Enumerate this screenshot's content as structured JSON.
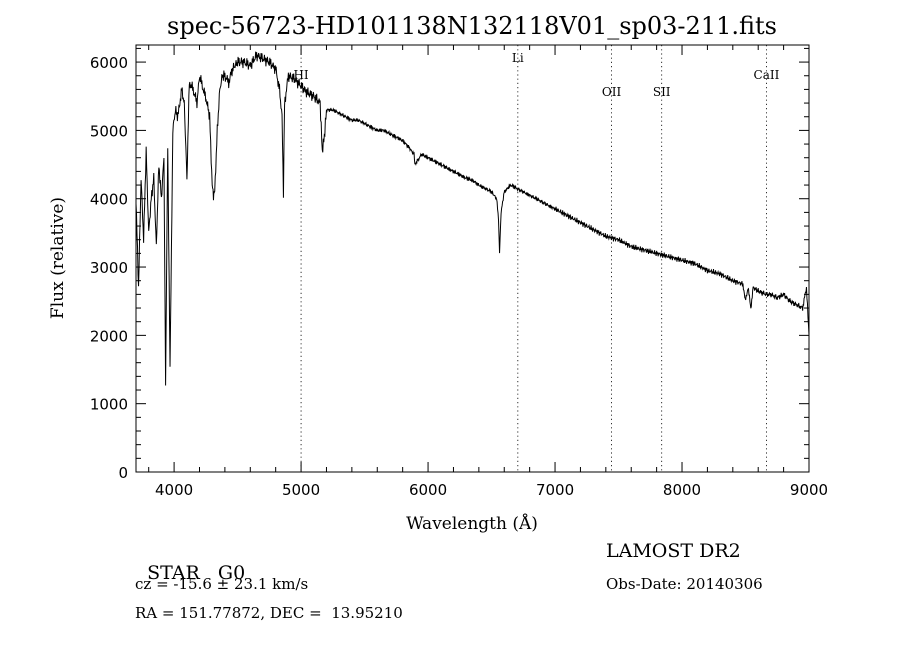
{
  "chart_data": {
    "type": "line",
    "title": "spec-56723-HD101138N132118V01_sp03-211.fits",
    "xlabel": "Wavelength (Å)",
    "ylabel": "Flux (relative)",
    "xlim": [
      3700,
      9000
    ],
    "ylim": [
      0,
      6250
    ],
    "x_ticks": [
      4000,
      5000,
      6000,
      7000,
      8000,
      9000
    ],
    "y_ticks": [
      0,
      1000,
      2000,
      3000,
      4000,
      5000,
      6000
    ],
    "grid": false,
    "series": [
      {
        "x": [
          3700,
          3720,
          3740,
          3760,
          3780,
          3800,
          3820,
          3840,
          3860,
          3880,
          3900,
          3920,
          3933,
          3950,
          3968,
          3990,
          4010,
          4030,
          4060,
          4080,
          4101,
          4120,
          4150,
          4180,
          4200,
          4230,
          4260,
          4280,
          4300,
          4310,
          4320,
          4340,
          4360,
          4380,
          4400,
          4430,
          4460,
          4500,
          4550,
          4600,
          4650,
          4700,
          4750,
          4800,
          4830,
          4850,
          4861,
          4870,
          4900,
          4950,
          5000,
          5050,
          5100,
          5150,
          5167,
          5183,
          5200,
          5250,
          5300,
          5350,
          5400,
          5450,
          5500,
          5550,
          5600,
          5650,
          5700,
          5750,
          5800,
          5850,
          5890,
          5896,
          5950,
          6000,
          6050,
          6100,
          6150,
          6200,
          6250,
          6300,
          6350,
          6400,
          6450,
          6500,
          6540,
          6555,
          6563,
          6575,
          6600,
          6650,
          6700,
          6750,
          6800,
          6850,
          6900,
          6950,
          7000,
          7100,
          7200,
          7300,
          7400,
          7500,
          7600,
          7700,
          7800,
          7900,
          8000,
          8100,
          8200,
          8300,
          8400,
          8480,
          8498,
          8520,
          8542,
          8560,
          8600,
          8662,
          8700,
          8750,
          8800,
          8850,
          8900,
          8950,
          8980,
          9000
        ],
        "y": [
          4000,
          2700,
          4300,
          3400,
          4700,
          3500,
          4000,
          4300,
          3300,
          4500,
          4000,
          4600,
          1300,
          4800,
          1500,
          5000,
          5300,
          5200,
          5600,
          5400,
          4300,
          5700,
          5600,
          5400,
          5800,
          5600,
          5400,
          5200,
          4200,
          4000,
          4100,
          5000,
          5600,
          5800,
          5800,
          5700,
          5900,
          6000,
          6000,
          5950,
          6100,
          6050,
          6000,
          5900,
          5600,
          5200,
          4100,
          5400,
          5800,
          5750,
          5650,
          5550,
          5500,
          5400,
          4700,
          4900,
          5300,
          5300,
          5250,
          5200,
          5150,
          5150,
          5100,
          5050,
          5000,
          5000,
          4950,
          4900,
          4850,
          4750,
          4650,
          4500,
          4650,
          4600,
          4550,
          4500,
          4450,
          4400,
          4350,
          4300,
          4270,
          4200,
          4150,
          4100,
          4000,
          3700,
          3200,
          3800,
          4100,
          4200,
          4150,
          4100,
          4050,
          4000,
          3950,
          3900,
          3850,
          3750,
          3650,
          3550,
          3450,
          3400,
          3300,
          3250,
          3200,
          3150,
          3100,
          3050,
          2950,
          2900,
          2800,
          2750,
          2500,
          2700,
          2400,
          2700,
          2650,
          2600,
          2600,
          2550,
          2600,
          2500,
          2450,
          2400,
          2700,
          2000
        ]
      }
    ],
    "line_markers": [
      {
        "label": "HI",
        "x": 5000
      },
      {
        "label": "Li",
        "x": 6707
      },
      {
        "label": "OII",
        "x": 7445
      },
      {
        "label": "SII",
        "x": 7840
      },
      {
        "label": "CaII",
        "x": 8665
      }
    ],
    "line_color": "#000000"
  },
  "info": {
    "object_class": "STAR",
    "subclass": "G0",
    "survey": "LAMOST DR2",
    "cz": "cz = -15.6 ± 23.1 km/s",
    "obs_date": "Obs-Date: 20140306",
    "radec": "RA = 151.77872, DEC =  13.95210"
  }
}
